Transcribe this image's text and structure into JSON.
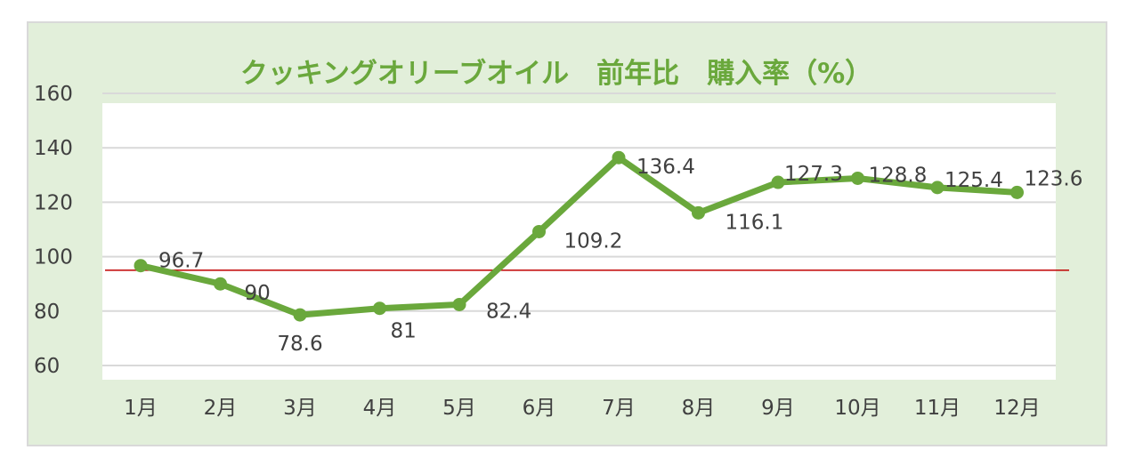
{
  "chart_data": {
    "type": "line",
    "title": "クッキングオリーブオイル　前年比　購入率（%）",
    "categories": [
      "1月",
      "2月",
      "3月",
      "4月",
      "5月",
      "6月",
      "7月",
      "8月",
      "9月",
      "10月",
      "11月",
      "12月"
    ],
    "series": [
      {
        "values": [
          96.7,
          90,
          78.6,
          81,
          82.4,
          109.2,
          136.4,
          116.1,
          127.3,
          128.8,
          125.4,
          123.6
        ]
      }
    ],
    "data_labels": [
      "96.7",
      "90",
      "78.6",
      "81",
      "82.4",
      "109.2",
      "136.4",
      "116.1",
      "127.3",
      "128.8",
      "125.4",
      "123.6"
    ],
    "y_ticks": [
      "60",
      "80",
      "100",
      "120",
      "140",
      "160"
    ],
    "ylim": [
      60,
      160
    ],
    "reference_line": 95,
    "grid": true,
    "legend": "none",
    "colors": {
      "line": "#6aa83c",
      "reference": "#c00000",
      "title": "#6aa83c",
      "background": "#e2efda",
      "plot_area": "#ffffff",
      "grid": "#d9d9d9"
    }
  }
}
